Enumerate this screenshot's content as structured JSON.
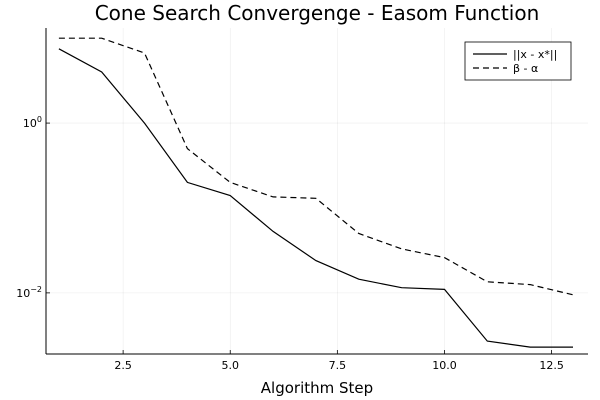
{
  "chart_data": {
    "type": "line",
    "title": "Cone Search Convergenge - Easom Function",
    "xlabel": "Algorithm Step",
    "ylabel": "",
    "y_scale": "log10",
    "xlim": [
      0.7,
      13.35
    ],
    "ylim_log10": [
      -2.72,
      1.12
    ],
    "grid": true,
    "legend_position": "top-right",
    "x_ticks": [
      {
        "value": 2.5,
        "label": "2.5"
      },
      {
        "value": 5.0,
        "label": "5.0"
      },
      {
        "value": 7.5,
        "label": "7.5"
      },
      {
        "value": 10.0,
        "label": "10.0"
      },
      {
        "value": 12.5,
        "label": "12.5"
      }
    ],
    "y_ticks": [
      {
        "exponent": 0,
        "base": "10",
        "power": "0"
      },
      {
        "exponent": -2,
        "base": "10",
        "power": "−2"
      }
    ],
    "x": [
      1,
      2,
      3,
      4,
      5,
      6,
      7,
      8,
      9,
      10,
      11,
      12,
      13
    ],
    "series": [
      {
        "name": "||x - x*||",
        "style": "solid",
        "color": "#000000",
        "values": [
          7.5,
          4.0,
          1.0,
          0.2,
          0.14,
          0.053,
          0.024,
          0.0145,
          0.0115,
          0.011,
          0.0027,
          0.0023,
          0.0023
        ]
      },
      {
        "name": "β - α",
        "style": "dashed",
        "color": "#000000",
        "values": [
          10.0,
          10.0,
          6.7,
          0.5,
          0.2,
          0.135,
          0.13,
          0.05,
          0.033,
          0.026,
          0.0135,
          0.0125,
          0.0095
        ]
      }
    ]
  }
}
